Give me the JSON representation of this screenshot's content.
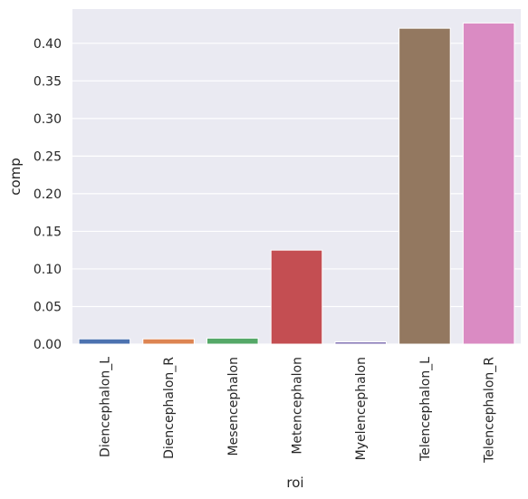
{
  "chart_data": {
    "type": "bar",
    "xlabel": "roi",
    "ylabel": "comp",
    "categories": [
      "Diencephalon_L",
      "Diencephalon_R",
      "Mesencephalon",
      "Metencephalon",
      "Myelencephalon",
      "Telencephalon_L",
      "Telencephalon_R"
    ],
    "values": [
      0.007,
      0.007,
      0.008,
      0.125,
      0.003,
      0.42,
      0.427
    ],
    "colors": [
      "#4c72b0",
      "#dd8452",
      "#55a868",
      "#c44e52",
      "#8172b3",
      "#937860",
      "#da8bc3"
    ],
    "yticks": [
      "0.00",
      "0.05",
      "0.10",
      "0.15",
      "0.20",
      "0.25",
      "0.30",
      "0.35",
      "0.40"
    ],
    "ylim": [
      0,
      0.4455
    ],
    "grid": true,
    "background": "#eaeaf2"
  }
}
